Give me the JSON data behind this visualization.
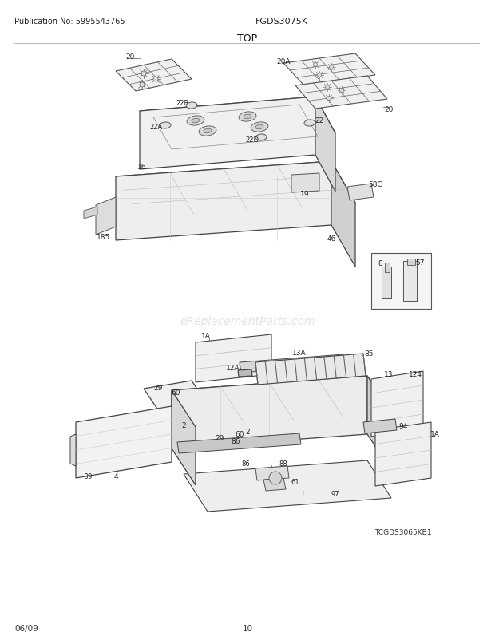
{
  "title": "TOP",
  "pub_no": "Publication No: 5995543765",
  "model": "FGDS3075K",
  "date": "06/09",
  "page": "10",
  "watermark": "eReplacementParts.com",
  "diagram_code": "TCGDS3065KB1",
  "bg_color": "#ffffff",
  "fig_width": 6.2,
  "fig_height": 8.03,
  "dpi": 100,
  "line_color": "#444444",
  "light_gray": "#cccccc",
  "mid_gray": "#aaaaaa",
  "dark_gray": "#888888"
}
